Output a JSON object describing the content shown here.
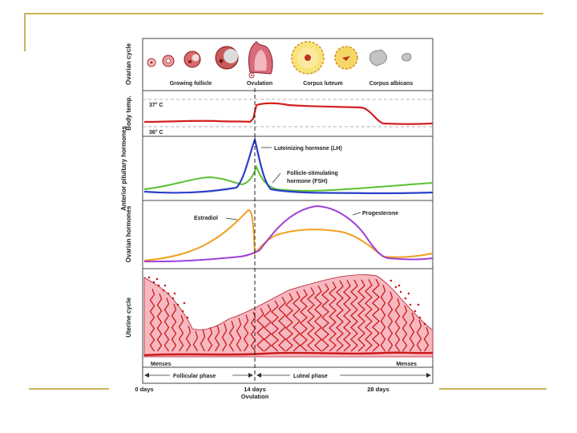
{
  "panels": {
    "ovarian_cycle": "Ovarian cycle",
    "body_temp": "Body temp.",
    "pituitary": "Anterior pituitary hormones",
    "ovarian_hormones": "Ovarian hormones",
    "uterine_cycle": "Uterine cycle"
  },
  "ovarian_stages": [
    "Growing follicle",
    "Ovulation",
    "Corpus luteum",
    "Corpus albicans"
  ],
  "temperature_marks": [
    "37° C",
    "36° C"
  ],
  "hormone_labels": {
    "lh": "Luteinizing hormone (LH)",
    "fsh_line1": "Follicle-stimulating",
    "fsh_line2": "hormone (FSH)",
    "estradiol": "Estradiol",
    "progesterone": "Progesterone"
  },
  "uterine_labels": {
    "menses_start": "Menses",
    "menses_end": "Menses"
  },
  "phases": {
    "follicular": "Follicular phase",
    "luteal": "Luteal phase"
  },
  "timeline": {
    "day0": "0 days",
    "day14": "14 days",
    "ovulation": "Ovulation",
    "day28": "28 days"
  },
  "colors": {
    "temperature": "#d42020",
    "lh": "#2840c8",
    "fsh": "#5cc030",
    "estradiol": "#f0a020",
    "progesterone": "#a040d8",
    "endometrium": "#f7b8c0",
    "vessel": "#cc1a1a"
  }
}
